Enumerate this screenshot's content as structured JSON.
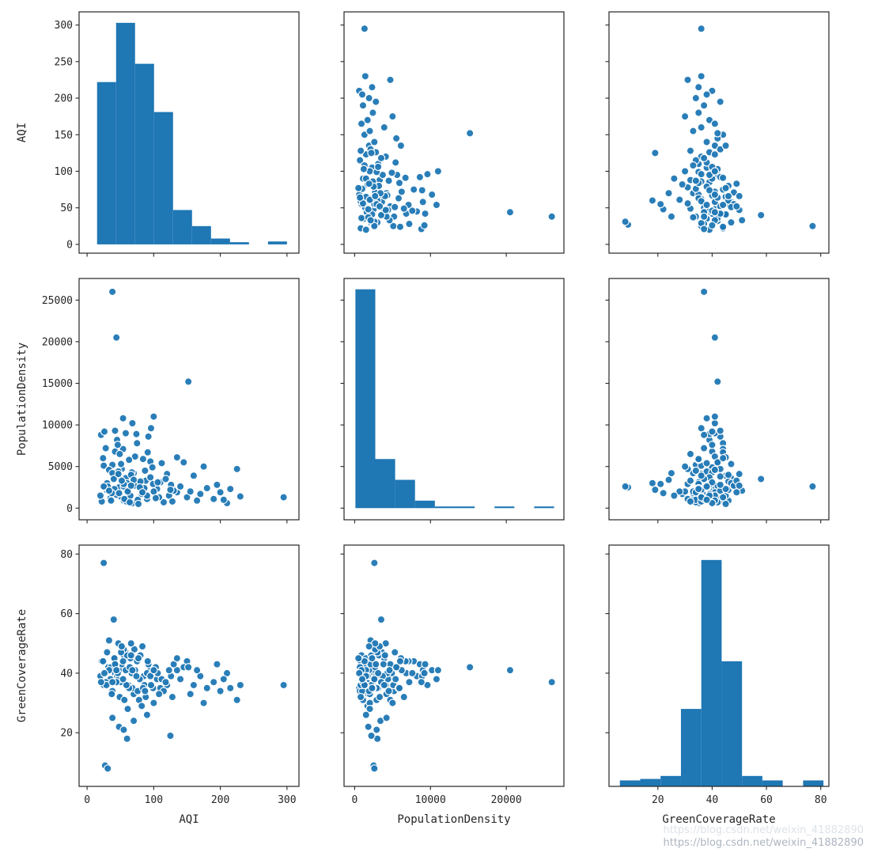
{
  "figure": {
    "background": "#ffffff",
    "spine_color": "#262626",
    "marker_color": "#1f77b4",
    "marker_edge_color": "#ffffff",
    "bar_color": "#1f77b4"
  },
  "watermark": {
    "line1": "https://blog.csdn.net/weixin_41882890",
    "line2": "https://blog.csdn.net/weixin_41882890"
  },
  "chart_data": {
    "type": "scatter",
    "subtype": "pairplot-3x3-scatter-matrix-with-diagonal-histograms",
    "grid": "off",
    "legend": "none",
    "variables": [
      "AQI",
      "PopulationDensity",
      "GreenCoverageRate"
    ],
    "axes": [
      {
        "label": "AQI",
        "domain": [
          -12,
          318
        ],
        "x_ticks": [
          0,
          100,
          200,
          300
        ],
        "y_ticks": [
          0,
          50,
          100,
          150,
          200,
          250,
          300
        ]
      },
      {
        "label": "PopulationDensity",
        "domain": [
          -1400,
          27600
        ],
        "x_ticks": [
          0,
          10000,
          20000
        ],
        "y_ticks": [
          0,
          5000,
          10000,
          15000,
          20000,
          25000
        ]
      },
      {
        "label": "GreenCoverageRate",
        "domain": [
          2,
          83
        ],
        "x_ticks": [
          20,
          40,
          60,
          80
        ],
        "y_ticks": [
          20,
          40,
          60,
          80
        ]
      }
    ],
    "histograms": [
      {
        "variable": "AQI",
        "bin_start": 15,
        "bin_width": 28.5,
        "heights": [
          222,
          303,
          247,
          181,
          47,
          25,
          8,
          3,
          0,
          4
        ]
      },
      {
        "variable": "PopulationDensity",
        "bin_start": 100,
        "bin_width": 2620,
        "heights": [
          26300,
          5900,
          3400,
          900,
          200,
          200,
          0,
          200,
          0,
          200
        ]
      },
      {
        "variable": "GreenCoverageRate",
        "bin_start": 6,
        "bin_width": 7.5,
        "heights": [
          4,
          4.5,
          5.5,
          28,
          78,
          44,
          5.5,
          4,
          0,
          4
        ]
      }
    ],
    "points_format": [
      "AQI",
      "PopulationDensity",
      "GreenCoverageRate"
    ],
    "points": [
      [
        22,
        800,
        44
      ],
      [
        35,
        1200,
        38
      ],
      [
        48,
        2500,
        41
      ],
      [
        62,
        3400,
        36
      ],
      [
        55,
        900,
        46
      ],
      [
        70,
        4200,
        33
      ],
      [
        85,
        2100,
        39
      ],
      [
        95,
        5600,
        42
      ],
      [
        110,
        3100,
        35
      ],
      [
        42,
        6800,
        40
      ],
      [
        28,
        7200,
        37
      ],
      [
        65,
        1500,
        45
      ],
      [
        78,
        2900,
        31
      ],
      [
        52,
        4700,
        43
      ],
      [
        38,
        5200,
        34
      ],
      [
        90,
        1100,
        40
      ],
      [
        105,
        2300,
        38
      ],
      [
        120,
        4100,
        36
      ],
      [
        135,
        1900,
        41
      ],
      [
        58,
        3600,
        47
      ],
      [
        45,
        8200,
        39
      ],
      [
        32,
        2700,
        42
      ],
      [
        68,
        600,
        35
      ],
      [
        75,
        7800,
        44
      ],
      [
        88,
        3300,
        32
      ],
      [
        50,
        1400,
        37
      ],
      [
        60,
        2200,
        46
      ],
      [
        98,
        4900,
        40
      ],
      [
        115,
        700,
        34
      ],
      [
        40,
        3900,
        45
      ],
      [
        25,
        5100,
        36
      ],
      [
        72,
        6200,
        41
      ],
      [
        82,
        1700,
        29
      ],
      [
        55,
        2600,
        48
      ],
      [
        47,
        4400,
        38
      ],
      [
        92,
        8600,
        43
      ],
      [
        108,
        1300,
        33
      ],
      [
        126,
        2800,
        39
      ],
      [
        63,
        5800,
        35
      ],
      [
        36,
        900,
        42
      ],
      [
        80,
        3200,
        46
      ],
      [
        100,
        2000,
        30
      ],
      [
        54,
        7100,
        44
      ],
      [
        44,
        1600,
        37
      ],
      [
        67,
        4300,
        40
      ],
      [
        86,
        2400,
        36
      ],
      [
        58,
        9000,
        41
      ],
      [
        30,
        3000,
        47
      ],
      [
        76,
        1000,
        34
      ],
      [
        112,
        5400,
        38
      ],
      [
        130,
        2100,
        43
      ],
      [
        49,
        6500,
        32
      ],
      [
        41,
        2300,
        45
      ],
      [
        95,
        3700,
        39
      ],
      [
        59,
        800,
        36
      ],
      [
        33,
        4600,
        41
      ],
      [
        71,
        2700,
        48
      ],
      [
        84,
        5900,
        35
      ],
      [
        103,
        1200,
        42
      ],
      [
        118,
        3500,
        37
      ],
      [
        46,
        7600,
        40
      ],
      [
        37,
        1800,
        33
      ],
      [
        66,
        4000,
        46
      ],
      [
        79,
        2500,
        38
      ],
      [
        91,
        6700,
        44
      ],
      [
        56,
        1100,
        31
      ],
      [
        43,
        3800,
        43
      ],
      [
        74,
        8900,
        39
      ],
      [
        99,
        2900,
        35
      ],
      [
        123,
        1500,
        41
      ],
      [
        51,
        5300,
        47
      ],
      [
        29,
        2200,
        36
      ],
      [
        64,
        700,
        42
      ],
      [
        87,
        4500,
        34
      ],
      [
        106,
        3100,
        40
      ],
      [
        140,
        2600,
        38
      ],
      [
        150,
        1300,
        44
      ],
      [
        160,
        3900,
        36
      ],
      [
        145,
        5500,
        42
      ],
      [
        155,
        2000,
        33
      ],
      [
        170,
        1700,
        39
      ],
      [
        180,
        2400,
        35
      ],
      [
        165,
        900,
        41
      ],
      [
        190,
        1100,
        37
      ],
      [
        200,
        1900,
        34
      ],
      [
        210,
        600,
        40
      ],
      [
        225,
        4700,
        31
      ],
      [
        230,
        1400,
        36
      ],
      [
        195,
        2800,
        43
      ],
      [
        175,
        5000,
        30
      ],
      [
        135,
        6100,
        45
      ],
      [
        128,
        800,
        32
      ],
      [
        20,
        1500,
        39
      ],
      [
        24,
        6000,
        44
      ],
      [
        68,
        10200,
        41
      ],
      [
        54,
        10800,
        38
      ],
      [
        96,
        9600,
        36
      ],
      [
        42,
        9300,
        43
      ],
      [
        77,
        500,
        45
      ],
      [
        61,
        2000,
        28
      ],
      [
        27,
        2500,
        9
      ],
      [
        31,
        2600,
        8
      ],
      [
        60,
        3000,
        18
      ],
      [
        125,
        2200,
        19
      ],
      [
        48,
        1800,
        22
      ],
      [
        70,
        3400,
        24
      ],
      [
        90,
        1500,
        26
      ],
      [
        38,
        4200,
        25
      ],
      [
        55,
        2900,
        21
      ],
      [
        25,
        2600,
        77
      ],
      [
        40,
        3500,
        58
      ],
      [
        33,
        2100,
        51
      ],
      [
        47,
        4100,
        50
      ],
      [
        38,
        26000,
        37
      ],
      [
        44,
        20500,
        41
      ],
      [
        152,
        15200,
        42
      ],
      [
        100,
        11000,
        41
      ],
      [
        295,
        1300,
        36
      ],
      [
        205,
        1000,
        38
      ],
      [
        215,
        2300,
        35
      ],
      [
        52,
        3300,
        49
      ],
      [
        66,
        2700,
        50
      ],
      [
        83,
        1900,
        49
      ],
      [
        21,
        8800,
        37
      ],
      [
        26,
        9200,
        40
      ]
    ]
  }
}
